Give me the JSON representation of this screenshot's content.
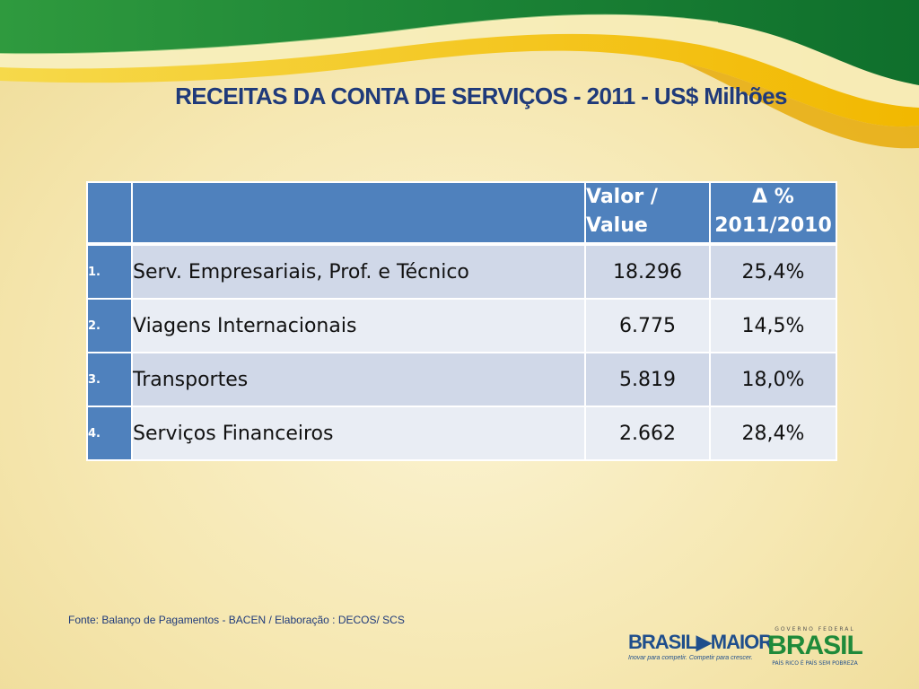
{
  "slide": {
    "title": "RECEITAS DA CONTA DE SERVIÇOS - 2011 - US$ Milhões",
    "source": "Fonte: Balanço de Pagamentos  - BACEN /  Elaboração : DECOS/ SCS"
  },
  "table": {
    "header": {
      "value_line1": "Valor /",
      "value_line2": "Value",
      "delta_line1": "Δ %",
      "delta_line2": "2011/2010"
    },
    "rows": [
      {
        "num": "1.",
        "label": "Serv. Empresariais, Prof. e Técnico",
        "value": "18.296",
        "delta": "25,4%"
      },
      {
        "num": "2.",
        "label": "Viagens Internacionais",
        "value": "6.775",
        "delta": "14,5%"
      },
      {
        "num": "3.",
        "label": "Transportes",
        "value": "5.819",
        "delta": "18,0%"
      },
      {
        "num": "4.",
        "label": "Serviços Financeiros",
        "value": "2.662",
        "delta": "28,4%"
      }
    ]
  },
  "logos": {
    "brasil_maior": {
      "word": "BRASIL▶MAIOR",
      "tagline": "Inovar para competir. Competir para crescer."
    },
    "governo_federal": {
      "top": "GOVERNO FEDERAL",
      "word": "BRASIL",
      "subtitle": "PAÍS RICO É PAÍS SEM POBREZA"
    }
  },
  "colors": {
    "title": "#1f3a7a",
    "header_fill": "#4f81bd",
    "row_odd": "#d0d8e8",
    "row_even": "#e9edf4",
    "banner_green": "#1d8a3c",
    "banner_yellow": "#f2c500"
  }
}
